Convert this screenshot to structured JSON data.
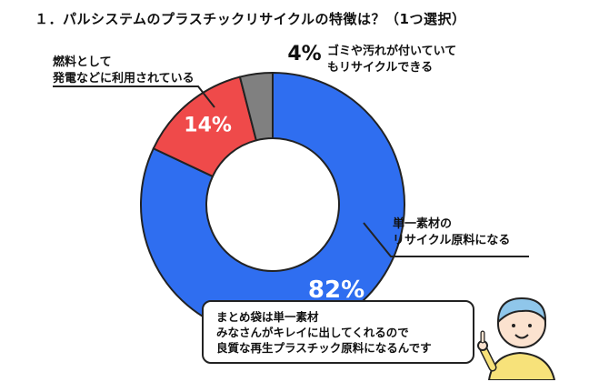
{
  "title": "１．パルシステムのプラスチックリサイクルの特徴は？（1つ選択）",
  "chart_data": {
    "type": "pie",
    "donut": true,
    "title": "１．パルシステムのプラスチックリサイクルの特徴は？（1つ選択）",
    "categories": [
      "単一素材のリサイクル原料になる",
      "燃料として発電などに利用されている",
      "ゴミや汚れが付いていてもリサイクルできる"
    ],
    "values": [
      82,
      14,
      4
    ],
    "value_labels": [
      "82%",
      "14%",
      "4%"
    ],
    "colors": [
      "#2f6ef0",
      "#ef4a4a",
      "#808080"
    ],
    "legend": "callout labels"
  },
  "labels": {
    "blue": {
      "line1": "単一素材の",
      "line2": "リサイクル原料になる"
    },
    "red": {
      "line1": "燃料として",
      "line2": "発電などに利用されている"
    },
    "gray": {
      "line1": "ゴミや汚れが付いていて",
      "line2": "もリサイクルできる"
    }
  },
  "bubble": {
    "line1": "まとめ袋は単一素材",
    "line2": "みなさんがキレイに出してくれるので",
    "line3": "良質な再生プラスチック原料になるんです"
  },
  "character": {
    "icon": "smiling-person-pointing"
  }
}
